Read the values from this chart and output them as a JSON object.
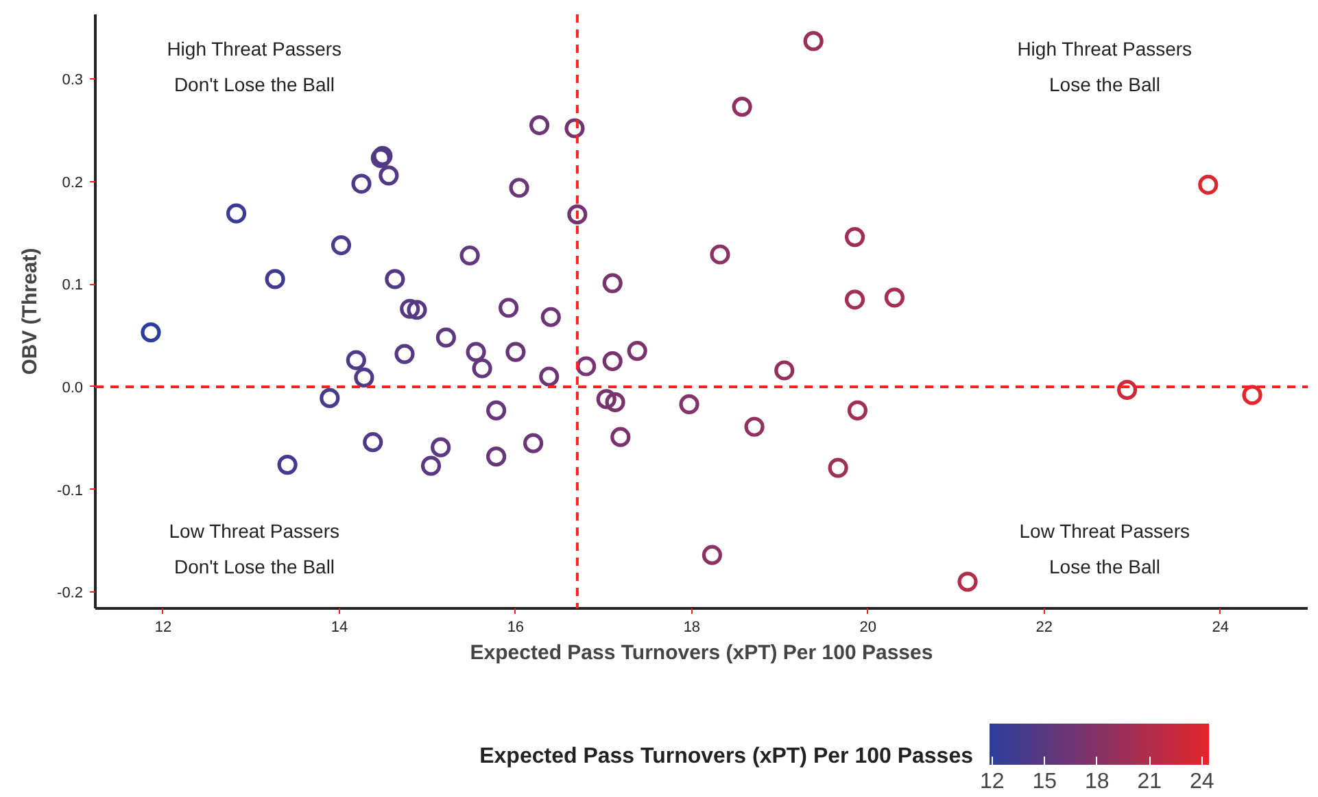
{
  "chart_data": {
    "type": "scatter",
    "xlabel": "Expected Pass Turnovers (xPT) Per 100 Passes",
    "ylabel": "OBV (Threat)",
    "clabel": "Expected Pass Turnovers (xPT) Per 100 Passes",
    "x": [
      11.86,
      12.83,
      13.27,
      14.02,
      14.25,
      14.47,
      14.49,
      14.56,
      14.63,
      15.48,
      16.27,
      16.04,
      14.8,
      14.88,
      15.21,
      14.19,
      14.74,
      14.28,
      13.89,
      15.55,
      15.62,
      15.92,
      16.0,
      16.4,
      16.38,
      15.78,
      14.38,
      15.15,
      15.04,
      15.78,
      16.2,
      13.41,
      16.67,
      19.38,
      18.57,
      16.7,
      18.32,
      19.85,
      17.1,
      19.85,
      20.3,
      16.8,
      17.1,
      17.38,
      19.05,
      17.03,
      17.13,
      17.19,
      17.97,
      18.71,
      19.88,
      19.66,
      18.23,
      23.86,
      22.94,
      24.36,
      21.13
    ],
    "values": [
      0.053,
      0.169,
      0.105,
      0.138,
      0.198,
      0.223,
      0.225,
      0.206,
      0.105,
      0.128,
      0.255,
      0.194,
      0.076,
      0.075,
      0.048,
      0.026,
      0.032,
      0.009,
      -0.011,
      0.034,
      0.018,
      0.077,
      0.034,
      0.068,
      0.01,
      -0.023,
      -0.054,
      -0.059,
      -0.077,
      -0.068,
      -0.055,
      -0.076,
      0.252,
      0.337,
      0.273,
      0.168,
      0.129,
      0.146,
      0.101,
      0.085,
      0.087,
      0.02,
      0.025,
      0.035,
      0.016,
      -0.012,
      -0.015,
      -0.049,
      -0.017,
      -0.039,
      -0.023,
      -0.079,
      -0.164,
      0.197,
      -0.003,
      -0.008,
      -0.19
    ],
    "cvalues": [
      11.86,
      12.83,
      13.27,
      14.02,
      14.25,
      14.47,
      14.49,
      14.56,
      14.63,
      15.48,
      16.27,
      16.04,
      14.8,
      14.88,
      15.21,
      14.19,
      14.74,
      14.28,
      13.89,
      15.55,
      15.62,
      15.92,
      16.0,
      16.4,
      16.38,
      15.78,
      14.38,
      15.15,
      15.04,
      15.78,
      16.2,
      13.41,
      16.67,
      19.38,
      18.57,
      16.7,
      18.32,
      19.85,
      17.1,
      19.85,
      20.3,
      16.8,
      17.1,
      17.38,
      19.05,
      17.03,
      17.13,
      17.19,
      17.97,
      18.71,
      19.88,
      19.66,
      18.23,
      23.86,
      22.94,
      24.36,
      21.13
    ],
    "clim": [
      11.85,
      24.4
    ],
    "cticks": [
      12,
      15,
      18,
      21,
      24
    ],
    "marker": "circle",
    "xlim": [
      11.23,
      24.99
    ],
    "ylim": [
      -0.216,
      0.363
    ],
    "xticks": [
      12,
      14,
      16,
      18,
      20,
      22,
      24
    ],
    "yticks": [
      -0.2,
      -0.1,
      {
        "value": 0,
        "label": "0.0"
      },
      0.1,
      0.2,
      0.3
    ],
    "grid": false,
    "ref_lines": [
      {
        "axis": "x",
        "value": 16.7,
        "color": "#ff2020",
        "line_style": "dashed"
      },
      {
        "axis": "y",
        "value": 0,
        "color": "#ff2020",
        "line_style": "dashed"
      }
    ],
    "annotations": [
      "High Threat Passers\nDon't Lose the Ball",
      "High Threat Passers\nLose the Ball",
      "Low Threat Passers\nDon't Lose the Ball",
      "Low Threat Passers\nLose the Ball"
    ]
  }
}
